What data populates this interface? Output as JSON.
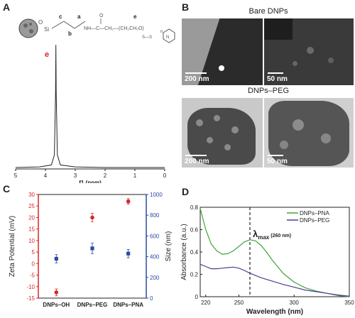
{
  "panels": {
    "a": "A",
    "b": "B",
    "c": "C",
    "d": "D"
  },
  "panel_a": {
    "chain_labels": {
      "a": "a",
      "b": "b",
      "c": "c",
      "e": "e"
    },
    "structure_text": {
      "main": "NH—C—CH₂—(CH₂CH₂O)",
      "n": "n",
      "ss": "S—S",
      "si": "Si",
      "o": "O"
    },
    "peak_label": "e",
    "colors": {
      "peak_label": "#d62828",
      "structure": "#555555"
    }
  },
  "panel_b": {
    "title_top": "Bare DNPs",
    "title_bottom": "DNPs–PEG",
    "scale_labels": [
      "200 nm",
      "50 nm",
      "200 nm",
      "50 nm"
    ]
  },
  "panel_c": {
    "xlabel_left": "Zeta Potential (mV)",
    "ylabel_right": "Size (nm)",
    "left_color": "#d62828",
    "right_color": "#2a4aa0"
  },
  "panel_d": {
    "xlabel": "Wavelength (nm)",
    "ylabel": "Absorbance (a.u.)",
    "annotation_main": "λ",
    "annotation_sub": "max",
    "annotation_rest": "(260 nm)"
  },
  "chart_data": [
    {
      "type": "line",
      "panel": "A",
      "xlabel": "f1 (ppm)",
      "xlim": [
        5,
        0
      ],
      "xticks": [
        "5",
        "4",
        "3",
        "2",
        "1",
        "0"
      ],
      "peaks": [
        {
          "x": 3.65,
          "height": 0.97
        }
      ],
      "series": [
        {
          "x": [
            5,
            4.2,
            3.8,
            3.7,
            3.66,
            3.65,
            3.64,
            3.6,
            3.5,
            3.0,
            2.0,
            1.0,
            0
          ],
          "y": [
            0.0,
            0.005,
            0.02,
            0.1,
            0.6,
            0.97,
            0.6,
            0.1,
            0.02,
            0.005,
            0.0,
            0.0,
            0.0
          ]
        }
      ],
      "color": "#222222"
    },
    {
      "type": "scatter",
      "panel": "C",
      "categories": [
        "DNPs–OH",
        "DNPs–PEG",
        "DNPs–PNA"
      ],
      "left_axis": {
        "label": "Zeta Potential (mV)",
        "ylim": [
          -15,
          30
        ],
        "ticks": [
          -15,
          -10,
          -5,
          0,
          5,
          10,
          15,
          20,
          25,
          30
        ]
      },
      "right_axis": {
        "label": "Size (nm)",
        "ylim": [
          0,
          1000
        ],
        "ticks": [
          0,
          200,
          400,
          600,
          800,
          1000
        ]
      },
      "series": [
        {
          "axis": "left",
          "values": [
            -12.5,
            20,
            27
          ],
          "errors": [
            1.5,
            1.8,
            1.2
          ],
          "color": "#d62828",
          "marker": "circle"
        },
        {
          "axis": "right",
          "values": [
            380,
            480,
            430
          ],
          "errors": [
            40,
            50,
            40
          ],
          "color": "#2a4aa0",
          "marker": "square"
        }
      ]
    },
    {
      "type": "line",
      "panel": "D",
      "xlabel": "Wavelength (nm)",
      "ylabel": "Absorbance (a.u.)",
      "xlim": [
        215,
        350
      ],
      "ylim": [
        0,
        0.8
      ],
      "xticks": [
        220,
        250,
        300,
        350
      ],
      "yticks": [
        0,
        0.2,
        0.4,
        0.6,
        0.8
      ],
      "vline": 260,
      "series": [
        {
          "name": "DNPs–PNA",
          "color": "#3aa63a",
          "x": [
            215,
            220,
            225,
            230,
            235,
            240,
            245,
            250,
            255,
            260,
            265,
            270,
            275,
            280,
            290,
            300,
            310,
            320,
            330,
            340,
            350
          ],
          "y": [
            0.79,
            0.6,
            0.47,
            0.41,
            0.38,
            0.385,
            0.41,
            0.45,
            0.49,
            0.51,
            0.5,
            0.46,
            0.4,
            0.33,
            0.21,
            0.13,
            0.08,
            0.05,
            0.03,
            0.01,
            0.0
          ]
        },
        {
          "name": "DNPs–PEG",
          "color": "#4a4090",
          "x": [
            215,
            220,
            225,
            230,
            235,
            240,
            245,
            250,
            255,
            260,
            270,
            280,
            290,
            300,
            310,
            320,
            330,
            340,
            350
          ],
          "y": [
            0.29,
            0.27,
            0.25,
            0.25,
            0.255,
            0.26,
            0.265,
            0.255,
            0.235,
            0.21,
            0.17,
            0.14,
            0.11,
            0.085,
            0.06,
            0.045,
            0.03,
            0.015,
            0.005
          ]
        }
      ],
      "legend": "top-right"
    }
  ]
}
